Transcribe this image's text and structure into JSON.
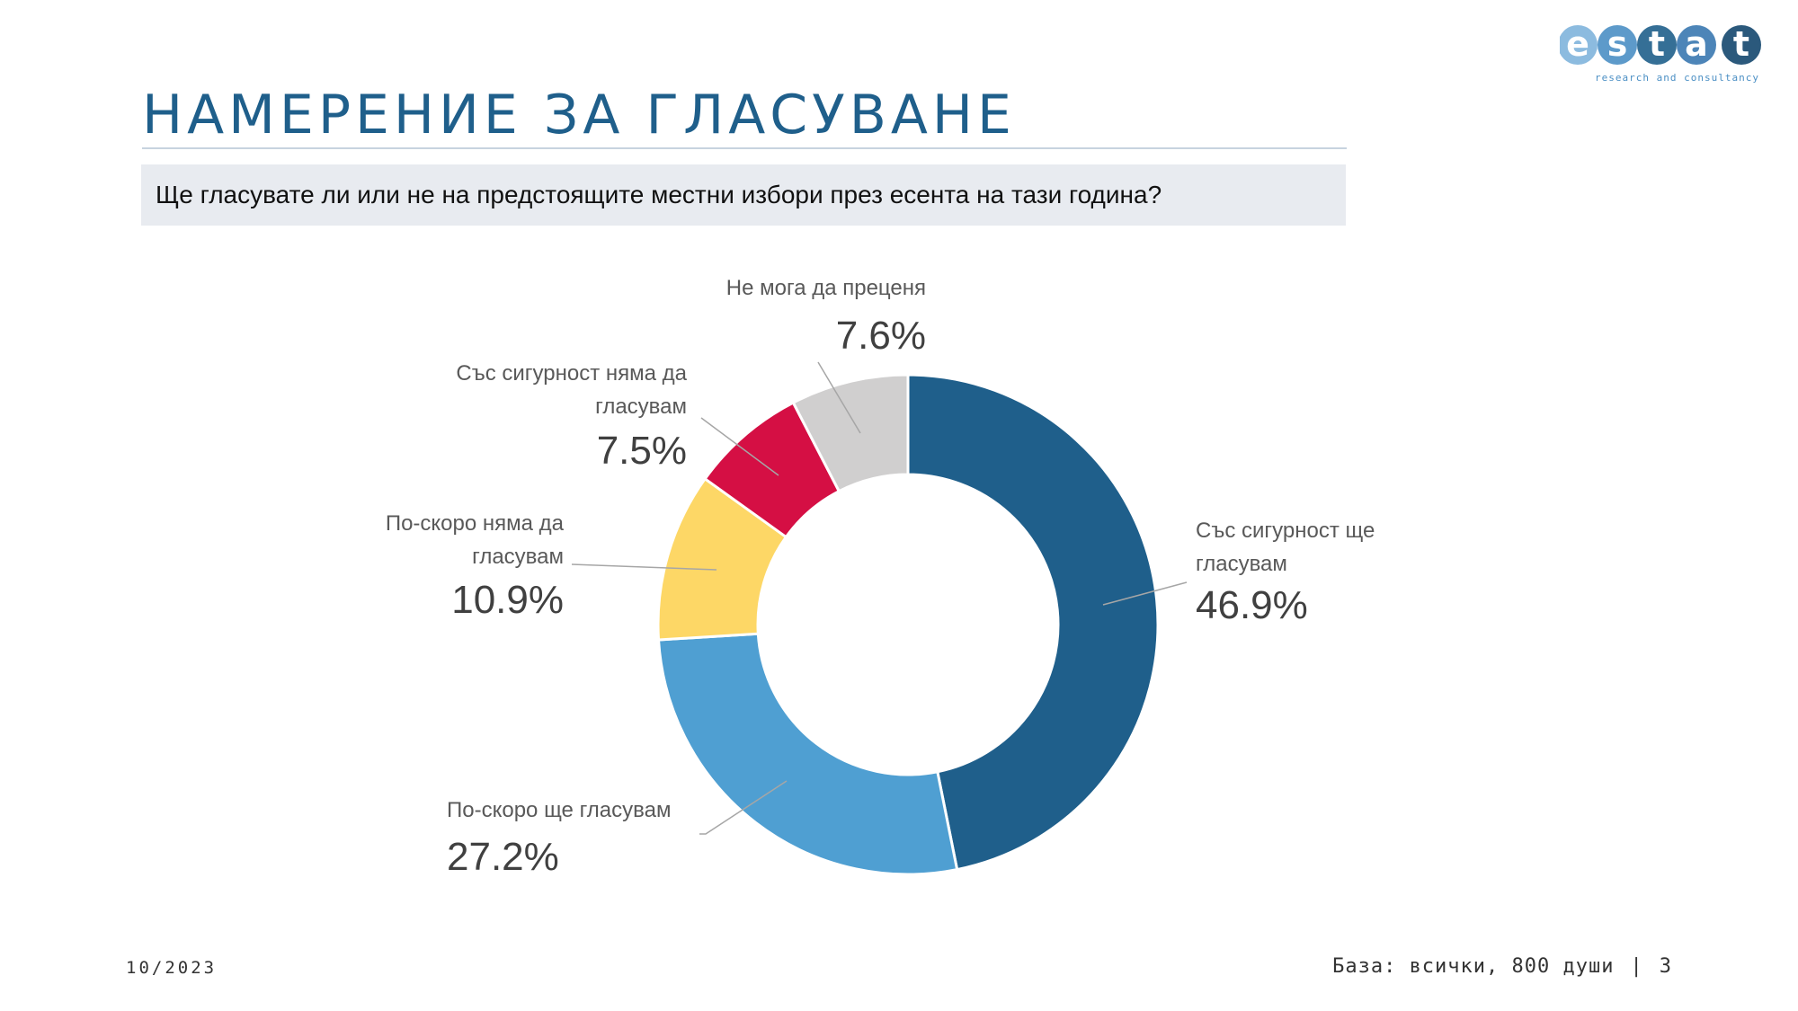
{
  "logo": {
    "letters": [
      "e",
      "s",
      "t",
      "a",
      "t"
    ],
    "tagline": "research and consultancy",
    "colors": [
      "#7fb4dc",
      "#4b8fc4",
      "#1f5f8b",
      "#3a78b0",
      "#14476e"
    ]
  },
  "title": "НАМЕРЕНИЕ ЗА ГЛАСУВАНЕ",
  "question": "Ще гласувате ли или не на предстоящите местни избори през есента на тази година?",
  "chart_data": {
    "type": "pie",
    "style": "donut",
    "unit": "%",
    "slices": [
      {
        "label_lines": [
          "Със сигурност ще",
          "гласувам"
        ],
        "value": 46.9,
        "display": "46.9%",
        "color": "#1f5f8b"
      },
      {
        "label_lines": [
          "По-скоро ще гласувам"
        ],
        "value": 27.2,
        "display": "27.2%",
        "color": "#4f9fd2"
      },
      {
        "label_lines": [
          "По-скоро няма да",
          "гласувам"
        ],
        "value": 10.9,
        "display": "10.9%",
        "color": "#fdd766"
      },
      {
        "label_lines": [
          "Със сигурност няма да",
          "гласувам"
        ],
        "value": 7.5,
        "display": "7.5%",
        "color": "#d50f44"
      },
      {
        "label_lines": [
          "Не мога да преценя"
        ],
        "value": 7.6,
        "display": "7.6%",
        "color": "#d0cfcf"
      }
    ]
  },
  "footer": {
    "date": "10/2023",
    "base": "База: всички, 800 души",
    "separator": "|",
    "page": "3"
  }
}
